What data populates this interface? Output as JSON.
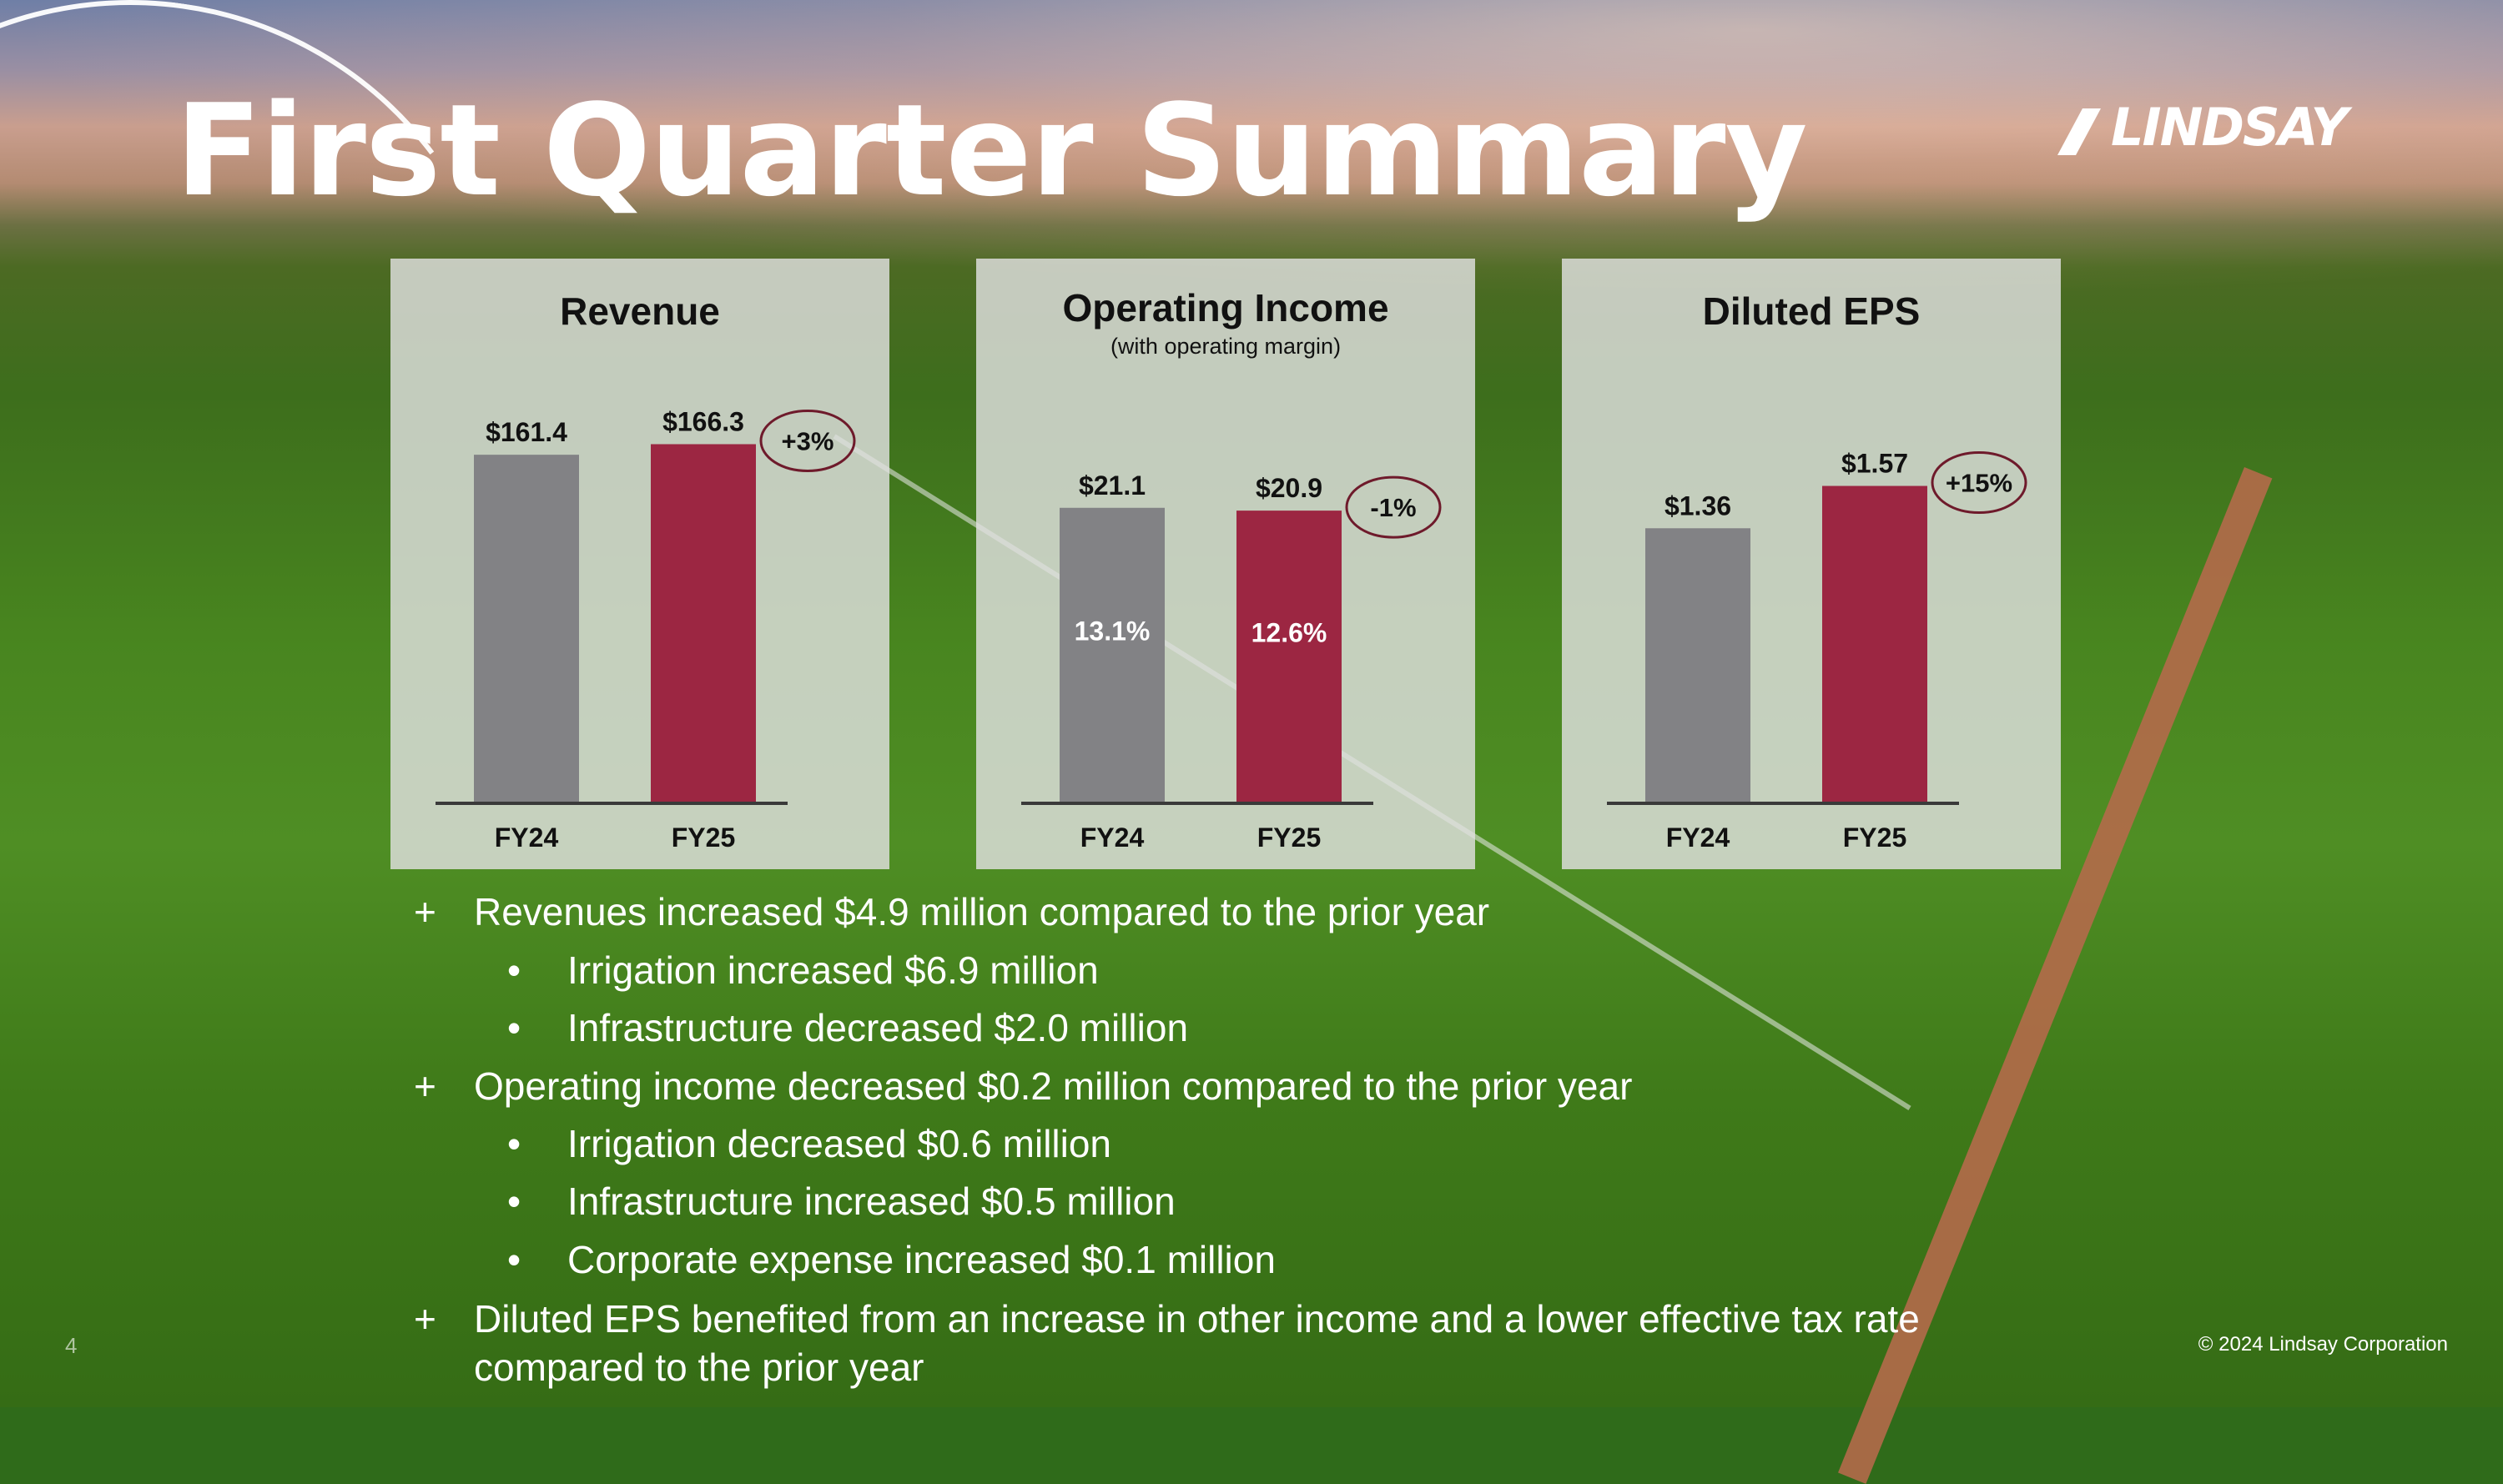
{
  "title": "First Quarter Summary",
  "logo_text": "LINDSAY",
  "colors": {
    "fy24": "#828285",
    "fy25": "#9c2642",
    "callout_border": "#6e1a2b",
    "text_light": "#ffffff"
  },
  "chart_data": [
    {
      "type": "bar",
      "title": "Revenue",
      "subtitle": "",
      "categories": [
        "FY24",
        "FY25"
      ],
      "values": [
        161.4,
        166.3
      ],
      "value_labels": [
        "$161.4",
        "$166.3"
      ],
      "inner_labels": [
        "",
        ""
      ],
      "change_label": "+3%",
      "ylim": [
        0,
        175
      ]
    },
    {
      "type": "bar",
      "title": "Operating Income",
      "subtitle": "(with operating margin)",
      "categories": [
        "FY24",
        "FY25"
      ],
      "values": [
        21.1,
        20.9
      ],
      "value_labels": [
        "$21.1",
        "$20.9"
      ],
      "inner_labels": [
        "13.1%",
        "12.6%"
      ],
      "change_label": "-1%",
      "ylim": [
        0,
        27
      ]
    },
    {
      "type": "bar",
      "title": "Diluted EPS",
      "subtitle": "",
      "categories": [
        "FY24",
        "FY25"
      ],
      "values": [
        1.36,
        1.57
      ],
      "value_labels": [
        "$1.36",
        "$1.57"
      ],
      "inner_labels": [
        "",
        ""
      ],
      "change_label": "+15%",
      "ylim": [
        0,
        1.87
      ]
    }
  ],
  "bullets": [
    {
      "marker": "+",
      "text": "Revenues increased $4.9 million compared to the prior year",
      "level": 0
    },
    {
      "marker": "•",
      "text": "Irrigation increased $6.9 million",
      "level": 1
    },
    {
      "marker": "•",
      "text": "Infrastructure decreased $2.0 million",
      "level": 1
    },
    {
      "marker": "+",
      "text": "Operating income decreased $0.2 million compared to the prior year",
      "level": 0
    },
    {
      "marker": "•",
      "text": "Irrigation decreased $0.6 million",
      "level": 1
    },
    {
      "marker": "•",
      "text": "Infrastructure increased $0.5 million",
      "level": 1
    },
    {
      "marker": "•",
      "text": "Corporate expense increased $0.1 million",
      "level": 1
    },
    {
      "marker": "+",
      "text": "Diluted EPS benefited from an increase in other income and a lower effective tax rate",
      "level": 0
    },
    {
      "marker": "",
      "text": "compared to the prior year",
      "level": 0
    }
  ],
  "footer": {
    "page_number": "4",
    "copyright": "© 2024 Lindsay Corporation"
  }
}
